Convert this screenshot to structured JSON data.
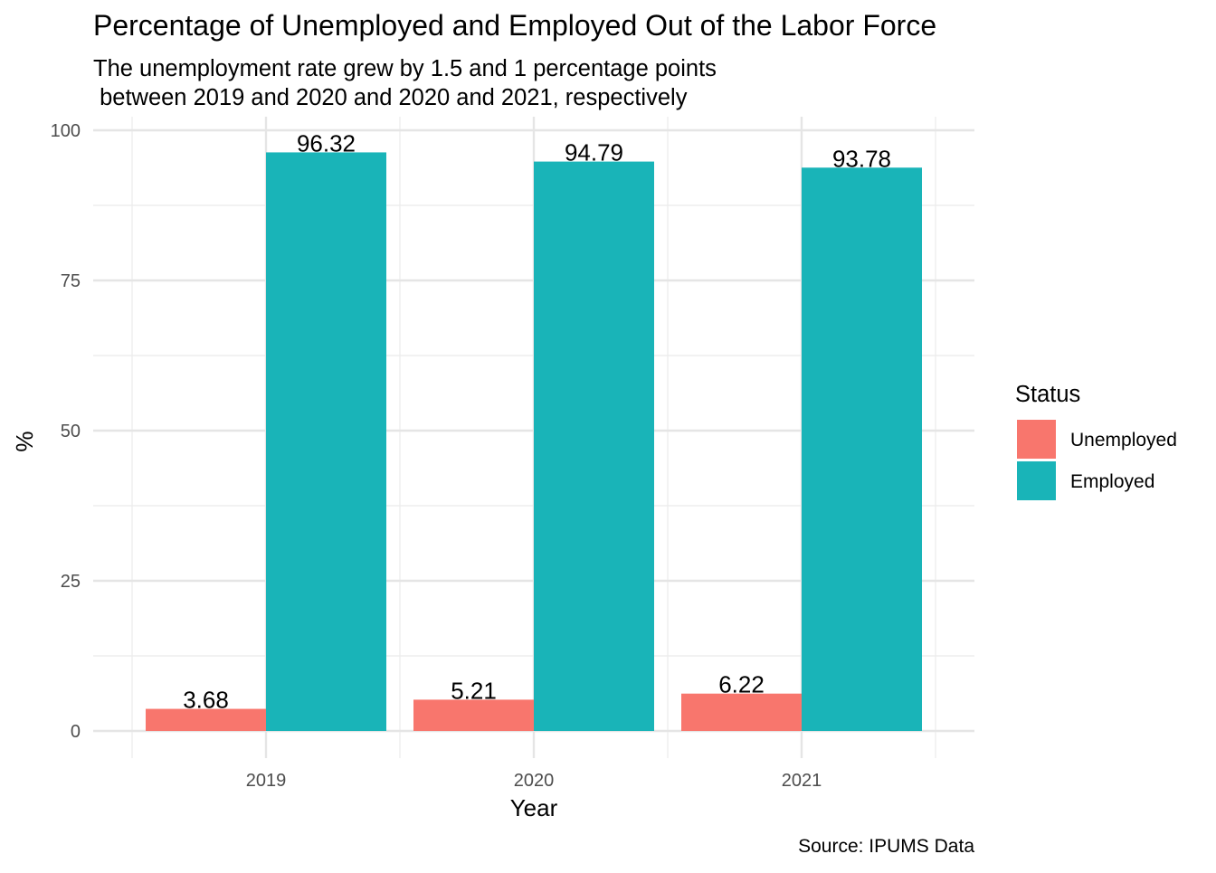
{
  "chart_data": {
    "type": "bar",
    "title": "Percentage of Unemployed and Employed Out of the Labor Force",
    "subtitle": [
      "The unemployment rate grew by 1.5 and 1 percentage points",
      " between 2019 and 2020 and 2020 and 2021, respectively"
    ],
    "xlabel": "Year",
    "ylabel": "%",
    "caption": "Source: IPUMS Data",
    "categories": [
      "2019",
      "2020",
      "2021"
    ],
    "series": [
      {
        "name": "Unemployed",
        "color": "#F8766D",
        "values": [
          3.68,
          5.21,
          6.22
        ],
        "labels": [
          "3.68",
          "5.21",
          "6.22"
        ]
      },
      {
        "name": "Employed",
        "color": "#19B4B8",
        "values": [
          96.32,
          94.79,
          93.78
        ],
        "labels": [
          "96.32",
          "94.79",
          "93.78"
        ]
      }
    ],
    "ylim": [
      0,
      100
    ],
    "yticks": [
      0,
      25,
      50,
      75,
      100
    ],
    "grid": true,
    "legend": {
      "title": "Status",
      "position": "right"
    }
  }
}
